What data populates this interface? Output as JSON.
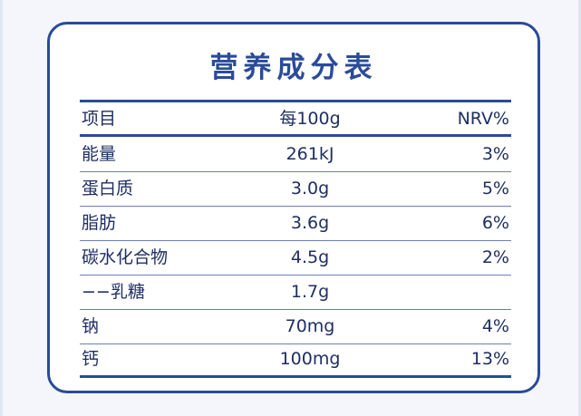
{
  "title": "营养成分表",
  "colors": {
    "accent": "#2a4b98",
    "text": "#1f2f63",
    "background": "#ffffff"
  },
  "table": {
    "headers": [
      "项目",
      "每100g",
      "NRV%"
    ],
    "rows": [
      [
        "能量",
        "261kJ",
        "3%"
      ],
      [
        "蛋白质",
        "3.0g",
        "5%"
      ],
      [
        "脂肪",
        "3.6g",
        "6%"
      ],
      [
        "碳水化合物",
        "4.5g",
        "2%"
      ],
      [
        "−−乳糖",
        "1.7g",
        ""
      ],
      [
        "钠",
        "70mg",
        "4%"
      ],
      [
        "钙",
        "100mg",
        "13%"
      ]
    ]
  }
}
